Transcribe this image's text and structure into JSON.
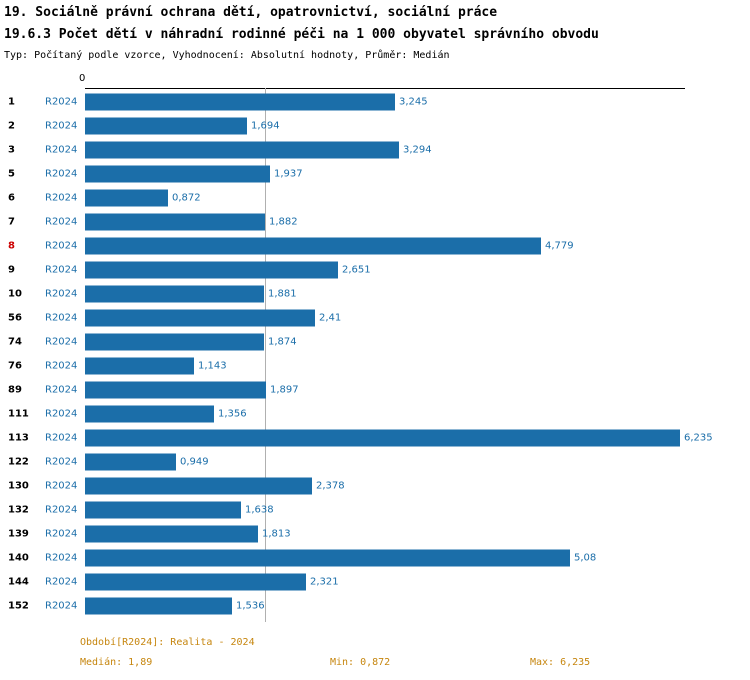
{
  "header": {
    "title_line1": "19. Sociálně právní ochrana dětí, opatrovnictví, sociální práce",
    "title_line2": "19.6.3 Počet dětí v náhradní rodinné péči na 1 000 obyvatel správního obvodu",
    "subtitle": "Typ: Počítaný podle vzorce, Vyhodnocení: Absolutní hodnoty, Průměr: Medián"
  },
  "chart_data": {
    "type": "bar",
    "orientation": "horizontal",
    "series_name": "R2024",
    "categories": [
      "1",
      "2",
      "3",
      "5",
      "6",
      "7",
      "8",
      "9",
      "10",
      "56",
      "74",
      "76",
      "89",
      "111",
      "113",
      "122",
      "130",
      "132",
      "139",
      "140",
      "144",
      "152"
    ],
    "values": [
      3.245,
      1.694,
      3.294,
      1.937,
      0.872,
      1.882,
      4.779,
      2.651,
      1.881,
      2.41,
      1.874,
      1.143,
      1.897,
      1.356,
      6.235,
      0.949,
      2.378,
      1.638,
      1.813,
      5.08,
      2.321,
      1.536
    ],
    "value_labels": [
      "3,245",
      "1,694",
      "3,294",
      "1,937",
      "0,872",
      "1,882",
      "4,779",
      "2,651",
      "1,881",
      "2,41",
      "1,874",
      "1,143",
      "1,897",
      "1,356",
      "6,235",
      "0,949",
      "2,378",
      "1,638",
      "1,813",
      "5,08",
      "2,321",
      "1,536"
    ],
    "highlighted_category": "8",
    "xlim": [
      0,
      6.29
    ],
    "x_axis_ticks": [
      "0"
    ],
    "median_value": 1.89,
    "grid": "median-line-only",
    "legend_position": "none",
    "bar_color": "#1b6ea9",
    "highlight_color": "#cc0000",
    "median_line_color": "#b0b0b0",
    "footer_color": "#c6860f"
  },
  "footer": {
    "period": "Období[R2024]: Realita - 2024",
    "median": "Medián: 1,89",
    "min": "Min: 0,872",
    "max": "Max: 6,235"
  }
}
